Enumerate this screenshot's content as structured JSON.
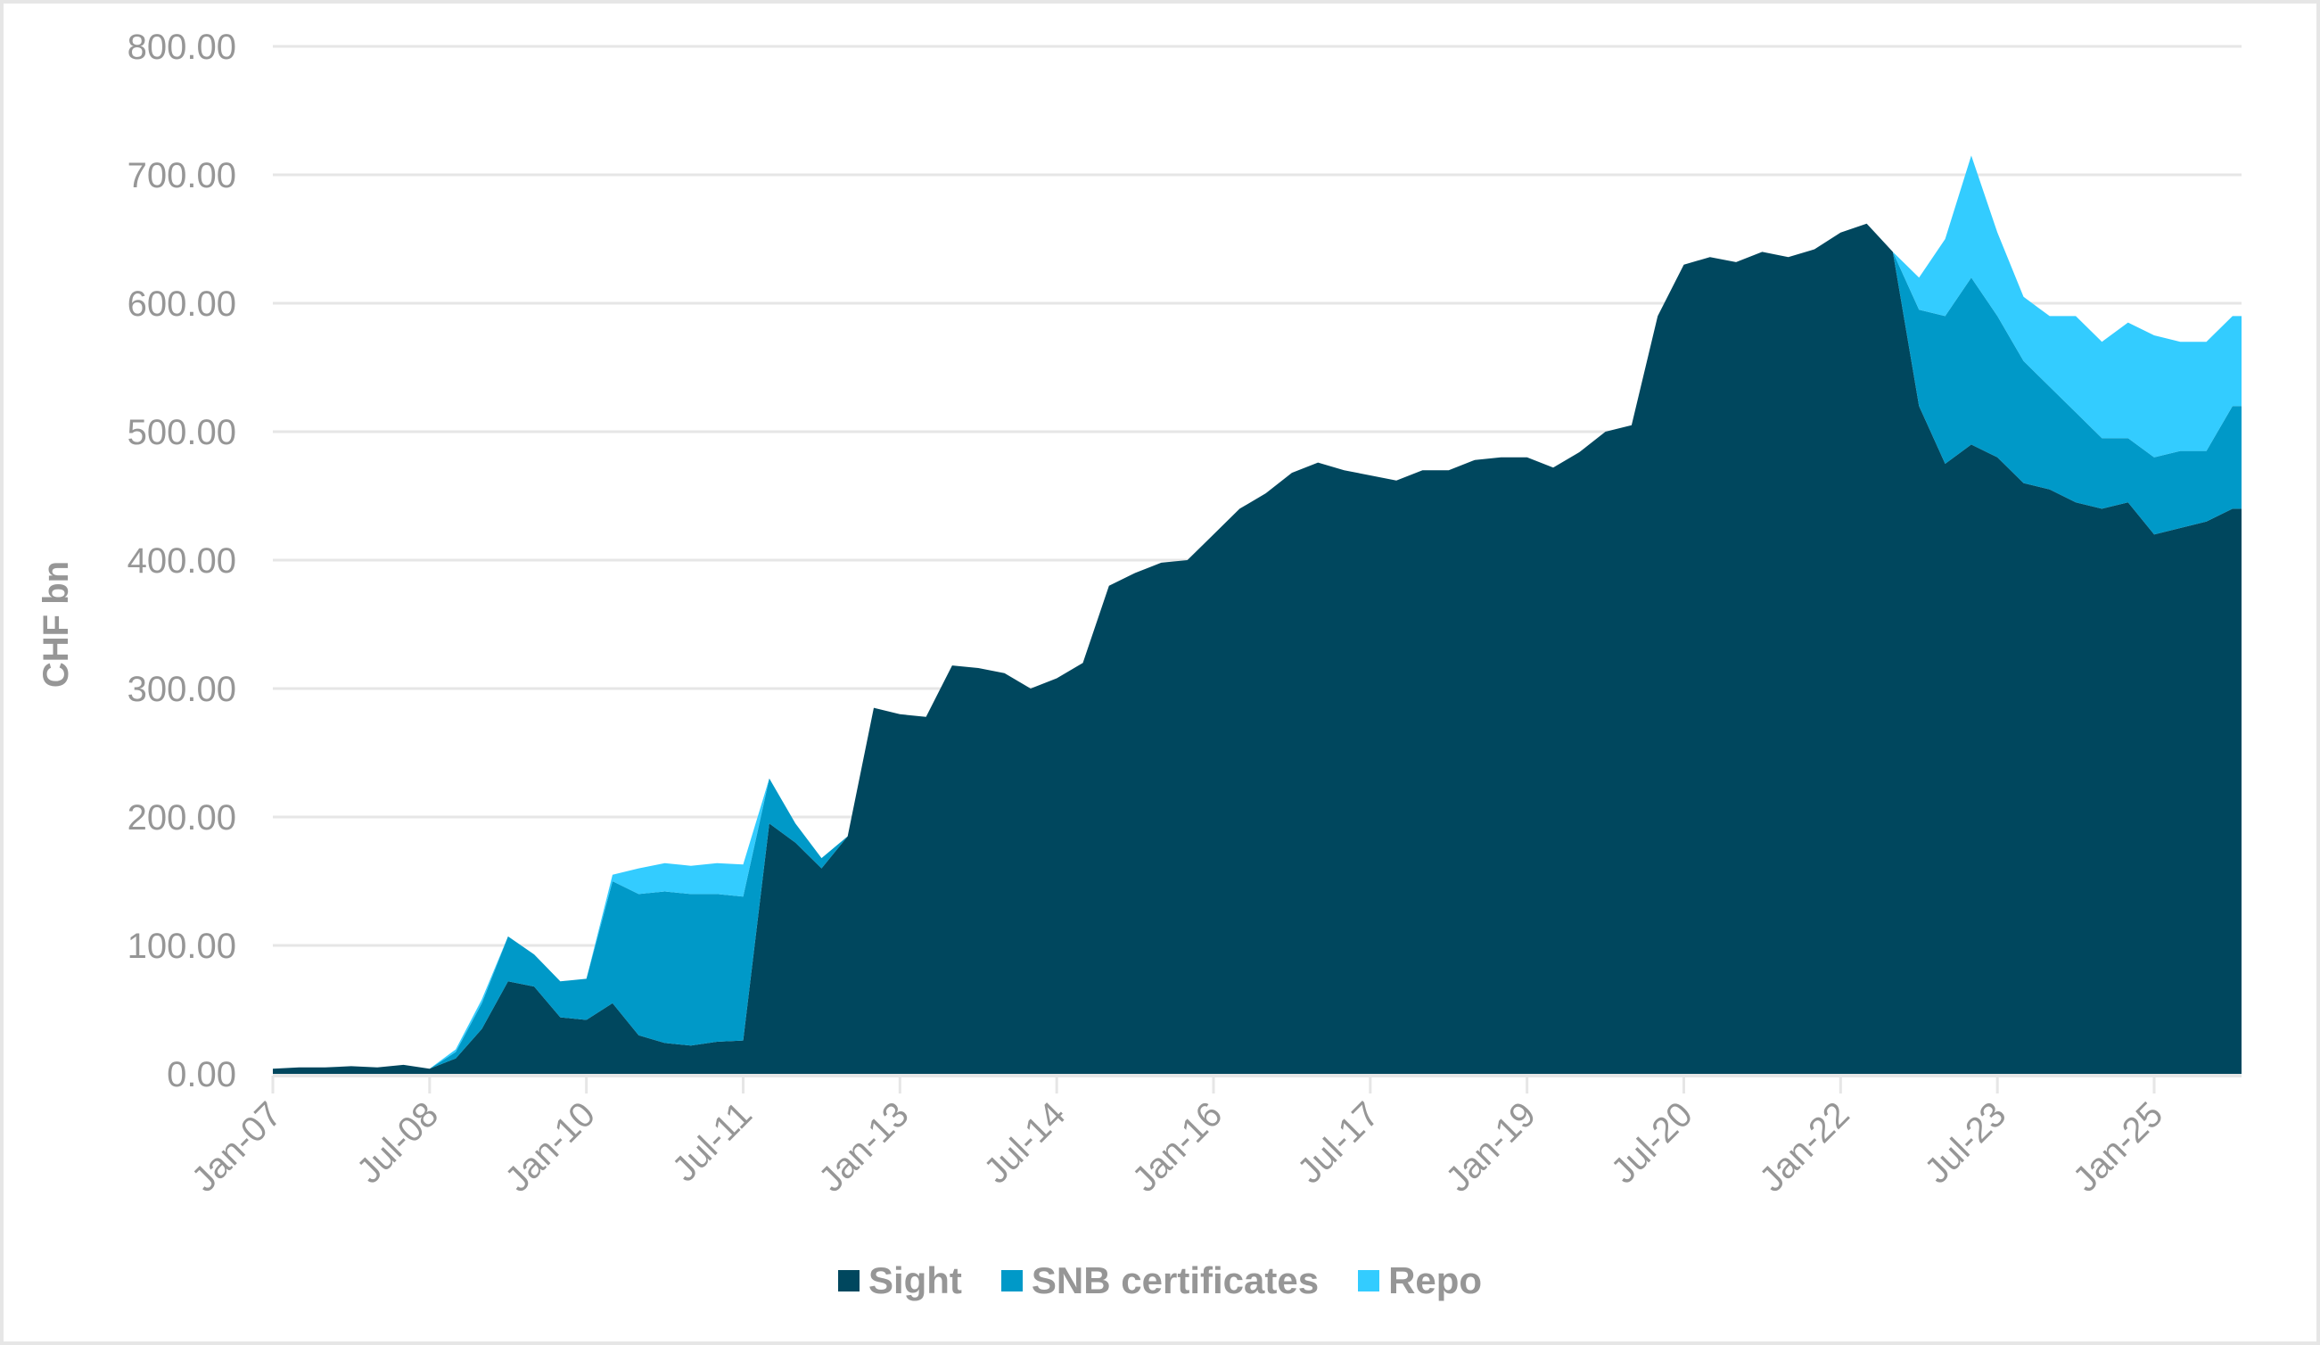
{
  "chart_data": {
    "type": "area",
    "stacked": true,
    "title": "",
    "xlabel": "",
    "ylabel": "CHF bn",
    "ylim": [
      0,
      800
    ],
    "yticks": [
      "0.00",
      "100.00",
      "200.00",
      "300.00",
      "400.00",
      "500.00",
      "600.00",
      "700.00",
      "800.00"
    ],
    "xticks": [
      "Jan-07",
      "Jul-08",
      "Jan-10",
      "Jul-11",
      "Jan-13",
      "Jul-14",
      "Jan-16",
      "Jul-17",
      "Jan-19",
      "Jul-20",
      "Jan-22",
      "Jul-23",
      "Jan-25"
    ],
    "grid": {
      "horizontal": true,
      "vertical": false
    },
    "legend_position": "bottom",
    "x_start": "2007-01",
    "x_step_months": 3,
    "x": [
      "Jan-07",
      "Apr-07",
      "Jul-07",
      "Oct-07",
      "Jan-08",
      "Apr-08",
      "Jul-08",
      "Oct-08",
      "Jan-09",
      "Apr-09",
      "Jul-09",
      "Oct-09",
      "Jan-10",
      "Apr-10",
      "Jul-10",
      "Oct-10",
      "Jan-11",
      "Apr-11",
      "Jul-11",
      "Oct-11",
      "Jan-12",
      "Apr-12",
      "Jul-12",
      "Oct-12",
      "Jan-13",
      "Apr-13",
      "Jul-13",
      "Oct-13",
      "Jan-14",
      "Apr-14",
      "Jul-14",
      "Oct-14",
      "Jan-15",
      "Apr-15",
      "Jul-15",
      "Oct-15",
      "Jan-16",
      "Apr-16",
      "Jul-16",
      "Oct-16",
      "Jan-17",
      "Apr-17",
      "Jul-17",
      "Oct-17",
      "Jan-18",
      "Apr-18",
      "Jul-18",
      "Oct-18",
      "Jan-19",
      "Apr-19",
      "Jul-19",
      "Oct-19",
      "Jan-20",
      "Apr-20",
      "Jul-20",
      "Oct-20",
      "Jan-21",
      "Apr-21",
      "Jul-21",
      "Oct-21",
      "Jan-22",
      "Apr-22",
      "Jul-22",
      "Oct-22",
      "Jan-23",
      "Apr-23",
      "Jul-23",
      "Oct-23",
      "Jan-24",
      "Apr-24",
      "Jul-24",
      "Oct-24",
      "Jan-25",
      "Apr-25",
      "Jul-25",
      "Oct-25"
    ],
    "series": [
      {
        "name": "Sight",
        "color": "#00475e",
        "values": [
          4,
          5,
          5,
          6,
          5,
          7,
          4,
          12,
          35,
          72,
          68,
          44,
          42,
          55,
          30,
          24,
          22,
          25,
          26,
          195,
          180,
          160,
          185,
          285,
          280,
          278,
          318,
          316,
          312,
          300,
          308,
          320,
          380,
          390,
          398,
          400,
          420,
          440,
          452,
          468,
          476,
          470,
          466,
          462,
          470,
          470,
          478,
          480,
          480,
          472,
          484,
          500,
          505,
          590,
          630,
          636,
          632,
          640,
          636,
          642,
          655,
          662,
          640,
          520,
          475,
          490,
          480,
          460,
          455,
          445,
          440,
          445,
          420,
          425,
          430,
          440
        ]
      },
      {
        "name": "SNB certificates",
        "color": "#0099c8",
        "values": [
          0,
          0,
          0,
          0,
          0,
          0,
          0,
          5,
          20,
          35,
          25,
          28,
          32,
          95,
          110,
          118,
          118,
          115,
          112,
          35,
          15,
          8,
          0,
          0,
          0,
          0,
          0,
          0,
          0,
          0,
          0,
          0,
          0,
          0,
          0,
          0,
          0,
          0,
          0,
          0,
          0,
          0,
          0,
          0,
          0,
          0,
          0,
          0,
          0,
          0,
          0,
          0,
          0,
          0,
          0,
          0,
          0,
          0,
          0,
          0,
          0,
          0,
          0,
          75,
          115,
          130,
          110,
          95,
          80,
          70,
          55,
          50,
          60,
          60,
          55,
          80
        ]
      },
      {
        "name": "Repo",
        "color": "#33ccff",
        "values": [
          0,
          0,
          0,
          0,
          0,
          0,
          0,
          2,
          3,
          0,
          0,
          0,
          0,
          5,
          20,
          22,
          22,
          24,
          25,
          0,
          0,
          0,
          0,
          0,
          0,
          0,
          0,
          0,
          0,
          0,
          0,
          0,
          0,
          0,
          0,
          0,
          0,
          0,
          0,
          0,
          0,
          0,
          0,
          0,
          0,
          0,
          0,
          0,
          0,
          0,
          0,
          0,
          0,
          0,
          0,
          0,
          0,
          0,
          0,
          0,
          0,
          0,
          0,
          25,
          60,
          95,
          65,
          50,
          55,
          75,
          75,
          90,
          95,
          85,
          85,
          70
        ]
      }
    ]
  },
  "legend": {
    "items": [
      {
        "label": "Sight",
        "color": "#00475e"
      },
      {
        "label": "SNB certificates",
        "color": "#0099c8"
      },
      {
        "label": "Repo",
        "color": "#33ccff"
      }
    ]
  },
  "axis": {
    "y_title": "CHF bn"
  },
  "colors": {
    "grid": "#e6e6e6",
    "tick_text": "#969696",
    "frame": "#e6e6e6"
  }
}
